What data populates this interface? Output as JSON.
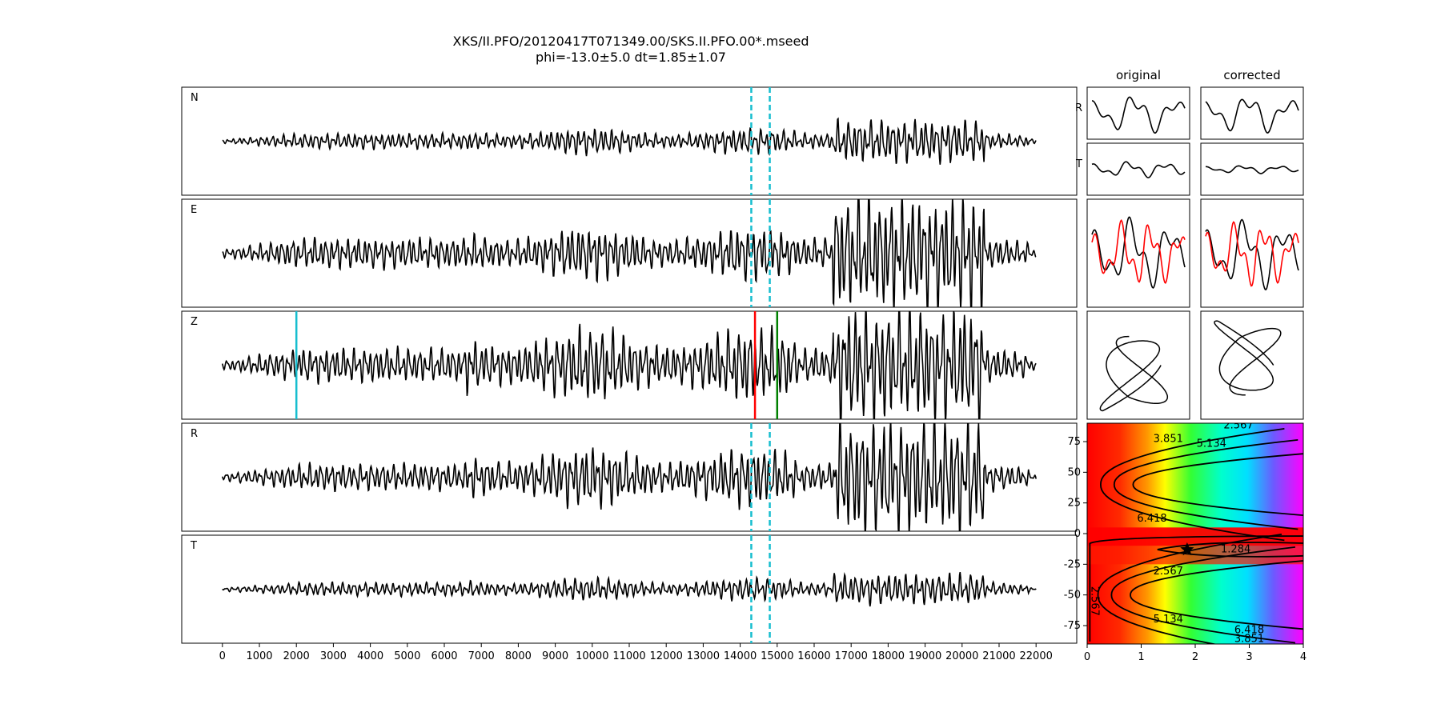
{
  "title": {
    "line1": "XKS/II.PFO/20120417T071349.00/SKS.II.PFO.00*.mseed",
    "line2": "phi=-13.0±5.0 dt=1.85±1.07"
  },
  "chart_data": [
    {
      "type": "line",
      "name": "seismogram-traces",
      "panels": [
        "N",
        "E",
        "Z",
        "R",
        "T"
      ],
      "x_range": [
        -1100,
        23100
      ],
      "x_ticks": [
        0,
        1000,
        2000,
        3000,
        4000,
        5000,
        6000,
        7000,
        8000,
        9000,
        10000,
        11000,
        12000,
        13000,
        14000,
        15000,
        16000,
        17000,
        18000,
        19000,
        20000,
        21000,
        22000
      ],
      "trace_extent": [
        0,
        22000
      ],
      "window_markers": [
        14300,
        14800
      ],
      "pick_lines": [
        {
          "x": 2000,
          "color": "#17becf"
        },
        {
          "x": 14400,
          "color": "#ff0000"
        },
        {
          "x": 15000,
          "color": "#008000"
        }
      ],
      "colors": {
        "trace": "#000000",
        "window": "#17becf"
      }
    },
    {
      "type": "line",
      "name": "particle-motion",
      "columns": [
        "original",
        "corrected"
      ],
      "row_labels": [
        "R",
        "T"
      ],
      "colors": {
        "radial": "#000000",
        "transverse": "#ff0000"
      }
    },
    {
      "type": "heatmap",
      "name": "error-surface",
      "xlim": [
        0,
        4
      ],
      "ylim": [
        -90,
        90
      ],
      "x_ticks": [
        0,
        1,
        2,
        3,
        4
      ],
      "y_ticks": [
        75,
        50,
        25,
        0,
        -25,
        -50,
        -75
      ],
      "contour_labels": [
        "1.284",
        "2.567",
        "3.851",
        "5.134",
        "6.418"
      ],
      "best_fit": {
        "dt": 1.85,
        "phi": -13.0
      }
    }
  ]
}
